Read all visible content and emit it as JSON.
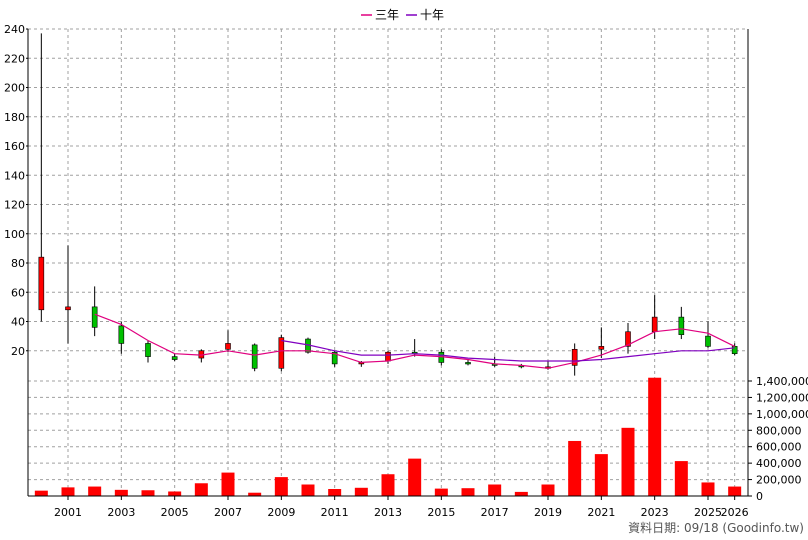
{
  "chart_data": {
    "type": "candlestick+bar",
    "legend": [
      {
        "name": "三年",
        "color": "#e0007f"
      },
      {
        "name": "十年",
        "color": "#8000c0"
      }
    ],
    "price_axis": {
      "range": [
        0,
        240
      ],
      "ticks": [
        20,
        40,
        60,
        80,
        100,
        120,
        140,
        160,
        180,
        200,
        220,
        240
      ]
    },
    "volume_axis": {
      "range": [
        0,
        1400000
      ],
      "ticks": [
        0,
        200000,
        400000,
        600000,
        800000,
        1000000,
        1200000,
        1400000
      ],
      "tick_labels": [
        "0",
        "200,000",
        "400,000",
        "600,000",
        "800,000",
        "1,000,000",
        "1,200,000",
        "1,400,000"
      ]
    },
    "x_range": [
      1999.5,
      2026.5
    ],
    "x_ticks": [
      2001,
      2003,
      2005,
      2007,
      2009,
      2011,
      2013,
      2015,
      2017,
      2019,
      2021,
      2023,
      2025,
      2026
    ],
    "grid": true,
    "colors": {
      "up": "#ff0000",
      "down": "#00c000",
      "volume": "#ff0000",
      "grid": "#a0a0a0"
    },
    "candles": [
      {
        "year": 2000,
        "open": 48,
        "high": 237,
        "low": 40,
        "close": 84
      },
      {
        "year": 2001,
        "open": 48,
        "high": 92,
        "low": 25,
        "close": 50
      },
      {
        "year": 2002,
        "open": 50,
        "high": 64,
        "low": 30,
        "close": 36
      },
      {
        "year": 2003,
        "open": 37,
        "high": 40,
        "low": 18,
        "close": 25
      },
      {
        "year": 2004,
        "open": 25,
        "high": 27,
        "low": 12,
        "close": 16
      },
      {
        "year": 2005,
        "open": 16,
        "high": 18,
        "low": 13,
        "close": 14
      },
      {
        "year": 2006,
        "open": 15,
        "high": 21,
        "low": 12,
        "close": 20
      },
      {
        "year": 2007,
        "open": 21,
        "high": 34,
        "low": 19,
        "close": 25
      },
      {
        "year": 2008,
        "open": 24,
        "high": 25,
        "low": 6,
        "close": 8
      },
      {
        "year": 2009,
        "open": 8,
        "high": 31,
        "low": 6,
        "close": 29
      },
      {
        "year": 2010,
        "open": 28,
        "high": 29,
        "low": 18,
        "close": 19
      },
      {
        "year": 2011,
        "open": 19,
        "high": 20,
        "low": 9,
        "close": 11
      },
      {
        "year": 2012,
        "open": 11,
        "high": 13,
        "low": 9,
        "close": 12
      },
      {
        "year": 2013,
        "open": 13,
        "high": 20,
        "low": 11,
        "close": 19
      },
      {
        "year": 2014,
        "open": 19,
        "high": 28,
        "low": 16,
        "close": 18
      },
      {
        "year": 2015,
        "open": 19,
        "high": 21,
        "low": 10,
        "close": 12
      },
      {
        "year": 2016,
        "open": 12,
        "high": 14,
        "low": 10,
        "close": 11
      },
      {
        "year": 2017,
        "open": 11,
        "high": 16,
        "low": 9,
        "close": 10
      },
      {
        "year": 2018,
        "open": 10,
        "high": 11,
        "low": 8,
        "close": 9
      },
      {
        "year": 2019,
        "open": 9,
        "high": 13,
        "low": 7,
        "close": 9
      },
      {
        "year": 2020,
        "open": 10,
        "high": 25,
        "low": 3,
        "close": 21
      },
      {
        "year": 2021,
        "open": 21,
        "high": 36,
        "low": 15,
        "close": 23
      },
      {
        "year": 2022,
        "open": 23,
        "high": 39,
        "low": 18,
        "close": 33
      },
      {
        "year": 2023,
        "open": 33,
        "high": 58,
        "low": 28,
        "close": 43
      },
      {
        "year": 2024,
        "open": 43,
        "high": 50,
        "low": 28,
        "close": 31
      },
      {
        "year": 2025,
        "open": 30,
        "high": 40,
        "low": 22,
        "close": 23
      },
      {
        "year": 2026,
        "open": 23,
        "high": 25,
        "low": 17,
        "close": 18
      }
    ],
    "series": [
      {
        "name": "三年",
        "points": [
          [
            2002,
            45
          ],
          [
            2003,
            38
          ],
          [
            2004,
            27
          ],
          [
            2005,
            18
          ],
          [
            2006,
            17
          ],
          [
            2007,
            20
          ],
          [
            2008,
            17
          ],
          [
            2009,
            20
          ],
          [
            2010,
            20
          ],
          [
            2011,
            18
          ],
          [
            2012,
            12
          ],
          [
            2013,
            13
          ],
          [
            2014,
            17
          ],
          [
            2015,
            16
          ],
          [
            2016,
            14
          ],
          [
            2017,
            11
          ],
          [
            2018,
            10
          ],
          [
            2019,
            8
          ],
          [
            2020,
            12
          ],
          [
            2021,
            17
          ],
          [
            2022,
            24
          ],
          [
            2023,
            33
          ],
          [
            2024,
            35
          ],
          [
            2025,
            32
          ],
          [
            2026,
            23
          ]
        ]
      },
      {
        "name": "十年",
        "points": [
          [
            2009,
            27
          ],
          [
            2010,
            24
          ],
          [
            2011,
            20
          ],
          [
            2012,
            17
          ],
          [
            2013,
            17
          ],
          [
            2014,
            18
          ],
          [
            2015,
            17
          ],
          [
            2016,
            15
          ],
          [
            2017,
            14
          ],
          [
            2018,
            13
          ],
          [
            2019,
            13
          ],
          [
            2020,
            13
          ],
          [
            2021,
            14
          ],
          [
            2022,
            16
          ],
          [
            2023,
            18
          ],
          [
            2024,
            20
          ],
          [
            2025,
            20
          ],
          [
            2026,
            22
          ]
        ]
      }
    ],
    "volume": [
      {
        "year": 2000,
        "value": 65000
      },
      {
        "year": 2001,
        "value": 105000
      },
      {
        "year": 2002,
        "value": 115000
      },
      {
        "year": 2003,
        "value": 75000
      },
      {
        "year": 2004,
        "value": 70000
      },
      {
        "year": 2005,
        "value": 55000
      },
      {
        "year": 2006,
        "value": 155000
      },
      {
        "year": 2007,
        "value": 285000
      },
      {
        "year": 2008,
        "value": 40000
      },
      {
        "year": 2009,
        "value": 230000
      },
      {
        "year": 2010,
        "value": 140000
      },
      {
        "year": 2011,
        "value": 85000
      },
      {
        "year": 2012,
        "value": 100000
      },
      {
        "year": 2013,
        "value": 265000
      },
      {
        "year": 2014,
        "value": 455000
      },
      {
        "year": 2015,
        "value": 90000
      },
      {
        "year": 2016,
        "value": 95000
      },
      {
        "year": 2017,
        "value": 140000
      },
      {
        "year": 2018,
        "value": 50000
      },
      {
        "year": 2019,
        "value": 140000
      },
      {
        "year": 2020,
        "value": 670000
      },
      {
        "year": 2021,
        "value": 510000
      },
      {
        "year": 2022,
        "value": 830000
      },
      {
        "year": 2023,
        "value": 1440000
      },
      {
        "year": 2024,
        "value": 425000
      },
      {
        "year": 2025,
        "value": 165000
      },
      {
        "year": 2026,
        "value": 115000
      }
    ]
  },
  "credit": "資料日期: 09/18 (Goodinfo.tw)"
}
